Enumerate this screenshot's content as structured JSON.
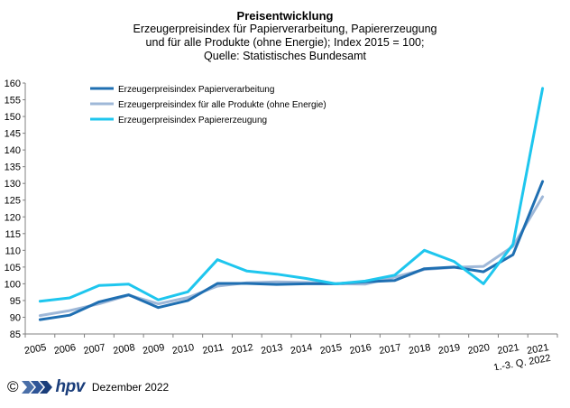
{
  "title": {
    "line1": "Preisentwicklung",
    "line2": "Erzeugerpreisindex  für Papierverarbeitung,  Papiererzeugung",
    "line3": "und für alle Produkte (ohne Energie); Index 2015 = 100;",
    "line4": "Quelle: Statistisches Bundesamt"
  },
  "footer": {
    "copyright": "©",
    "logo_text": "hpv",
    "date": "Dezember 2022"
  },
  "chart_data": {
    "type": "line",
    "categories": [
      "2005",
      "2006",
      "2007",
      "2008",
      "2009",
      "2010",
      "2011",
      "2012",
      "2013",
      "2014",
      "2015",
      "2016",
      "2017",
      "2018",
      "2019",
      "2020",
      "2021",
      "1.-3. Q. 2022"
    ],
    "last_category_lines": [
      "2021",
      "1.-3. Q. 2022"
    ],
    "ylim": [
      85,
      160
    ],
    "yticks": [
      85,
      90,
      95,
      100,
      105,
      110,
      115,
      120,
      125,
      130,
      135,
      140,
      145,
      150,
      155,
      160
    ],
    "legend_position": "top-left",
    "series": [
      {
        "name": "Erzeugerpreisindex Papierverarbeitung",
        "color": "#1f6fb2",
        "width": 3,
        "values": [
          89.3,
          90.6,
          94.6,
          96.7,
          92.9,
          95.0,
          100.1,
          100.1,
          99.8,
          100.0,
          100.0,
          100.6,
          101.0,
          104.5,
          105.0,
          103.6,
          108.7,
          130.6
        ]
      },
      {
        "name": "Erzeugerpreisindex für alle Produkte (ohne Energie)",
        "color": "#9fb8d8",
        "width": 3,
        "values": [
          90.5,
          92.0,
          94.0,
          96.6,
          94.0,
          95.9,
          99.3,
          100.3,
          100.6,
          100.4,
          100.0,
          99.9,
          102.0,
          104.3,
          104.9,
          105.2,
          111.2,
          126.0
        ]
      },
      {
        "name": "Erzeugerpreisindex Papiererzeugung",
        "color": "#1ec6ee",
        "width": 3,
        "values": [
          94.8,
          95.8,
          99.5,
          99.9,
          95.2,
          97.6,
          107.2,
          103.8,
          102.9,
          101.6,
          100.0,
          100.8,
          102.6,
          110.0,
          106.7,
          100.0,
          111.8,
          158.4
        ]
      }
    ]
  }
}
